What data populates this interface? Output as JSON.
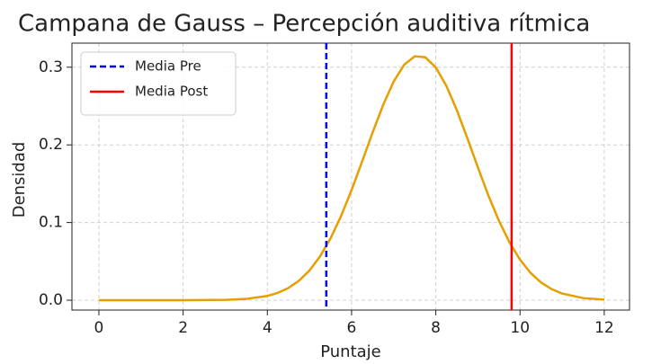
{
  "chart_data": {
    "type": "line",
    "title": "Campana de Gauss – Percepción auditiva rítmica",
    "x_label": "Puntaje",
    "y_label": "Densidad",
    "x": [
      0,
      1,
      2,
      3,
      3.5,
      4,
      4.25,
      4.5,
      4.75,
      5,
      5.25,
      5.5,
      5.75,
      6,
      6.25,
      6.5,
      6.75,
      7,
      7.25,
      7.5,
      7.75,
      8,
      8.25,
      8.5,
      8.75,
      9,
      9.25,
      9.5,
      9.75,
      10,
      10.25,
      10.5,
      10.75,
      11,
      11.5,
      12
    ],
    "series": [
      {
        "color": "#e69f00",
        "values": [
          0,
          0,
          0,
          0.0004,
          0.0017,
          0.0055,
          0.0095,
          0.0157,
          0.025,
          0.0382,
          0.0563,
          0.0796,
          0.1083,
          0.1418,
          0.1784,
          0.216,
          0.2514,
          0.2815,
          0.3032,
          0.314,
          0.3128,
          0.2997,
          0.2761,
          0.2447,
          0.2085,
          0.1709,
          0.1347,
          0.1022,
          0.0745,
          0.0522,
          0.0352,
          0.0228,
          0.0143,
          0.0086,
          0.0027,
          0.0008
        ]
      }
    ],
    "vlines": [
      {
        "name": "Media Pre",
        "x": 5.4,
        "color": "#0000ff",
        "dashed": true
      },
      {
        "name": "Media Post",
        "x": 9.8,
        "color": "#ff0000",
        "dashed": false
      }
    ],
    "xlim": [
      -0.64,
      12.6
    ],
    "xticks": [
      0,
      2,
      4,
      6,
      8,
      10,
      12
    ],
    "ylim": [
      -0.0127,
      0.331
    ],
    "yticks": [
      {
        "value": 0,
        "label": "0.0"
      },
      {
        "value": 0.1,
        "label": "0.1"
      },
      {
        "value": 0.2,
        "label": "0.2"
      },
      {
        "value": 0.3,
        "label": "0.3"
      }
    ],
    "grid": true,
    "legend": "upper left"
  }
}
